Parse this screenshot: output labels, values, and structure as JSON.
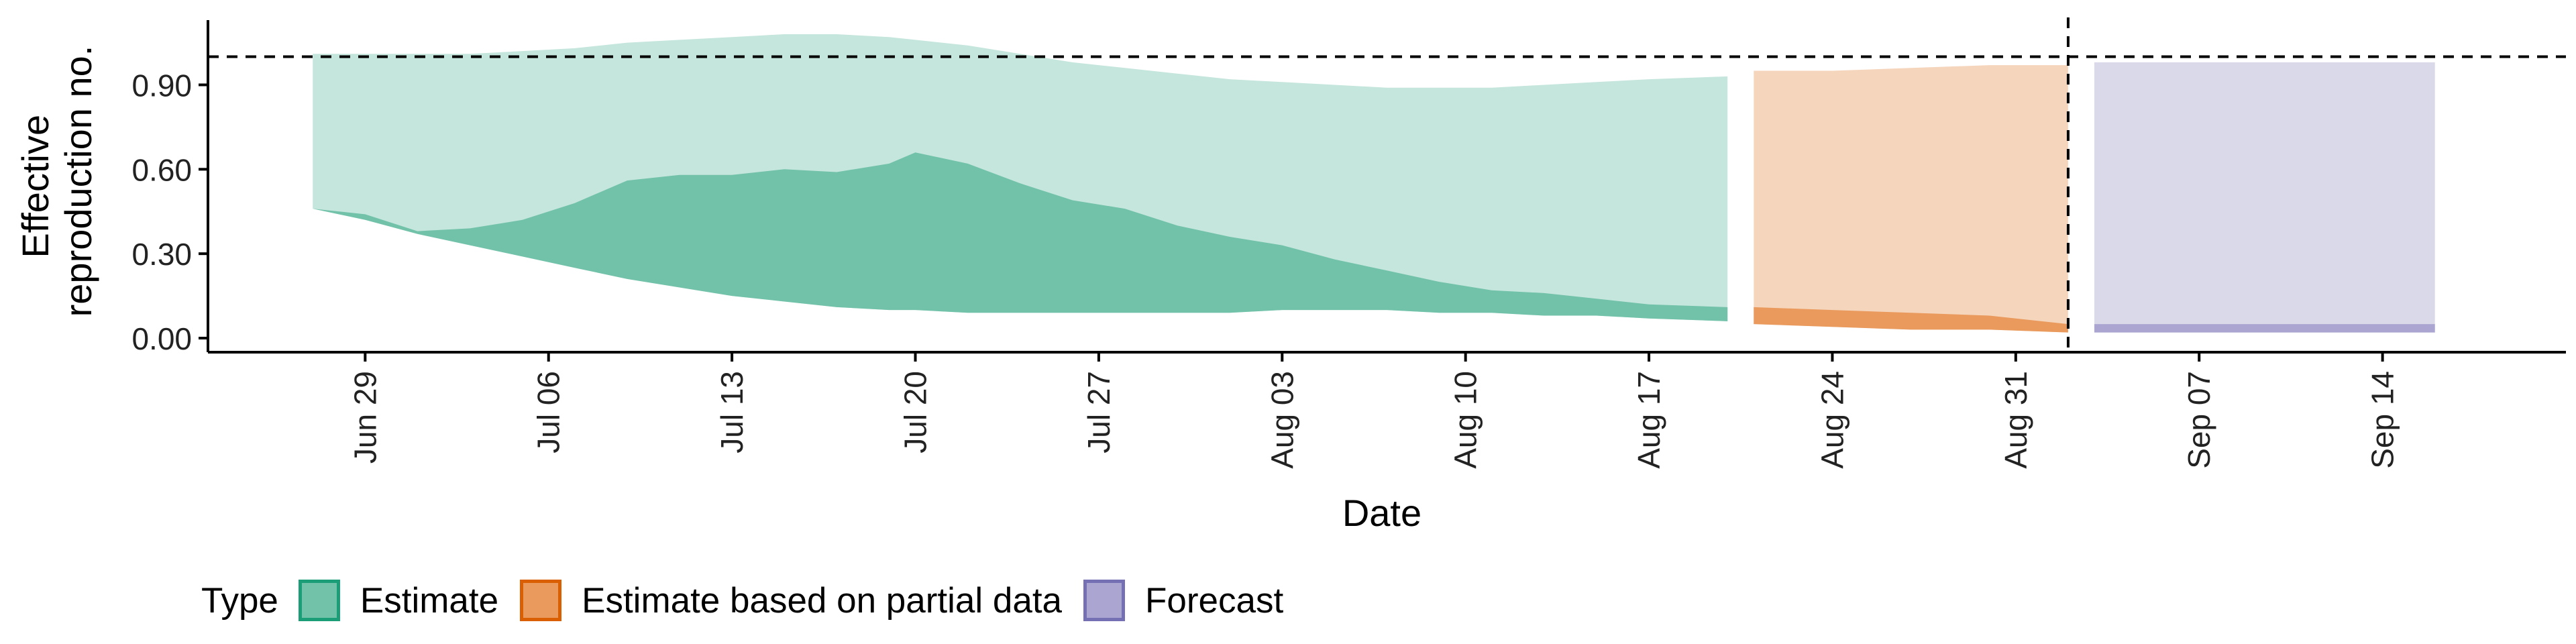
{
  "chart_data": {
    "type": "area",
    "xlabel": "Date",
    "ylabel_lines": [
      "Effective",
      "reproduction no."
    ],
    "x_range": [
      "2020-06-23",
      "2020-09-21"
    ],
    "y_range": [
      -0.05,
      1.13
    ],
    "x_ticks": [
      {
        "date": "2020-06-29",
        "label": "Jun 29"
      },
      {
        "date": "2020-07-06",
        "label": "Jul 06"
      },
      {
        "date": "2020-07-13",
        "label": "Jul 13"
      },
      {
        "date": "2020-07-20",
        "label": "Jul 20"
      },
      {
        "date": "2020-07-27",
        "label": "Jul 27"
      },
      {
        "date": "2020-08-03",
        "label": "Aug 03"
      },
      {
        "date": "2020-08-10",
        "label": "Aug 10"
      },
      {
        "date": "2020-08-17",
        "label": "Aug 17"
      },
      {
        "date": "2020-08-24",
        "label": "Aug 24"
      },
      {
        "date": "2020-08-31",
        "label": "Aug 31"
      },
      {
        "date": "2020-09-07",
        "label": "Sep 07"
      },
      {
        "date": "2020-09-14",
        "label": "Sep 14"
      }
    ],
    "y_ticks": [
      {
        "value": 0.0,
        "label": "0.00"
      },
      {
        "value": 0.3,
        "label": "0.30"
      },
      {
        "value": 0.6,
        "label": "0.60"
      },
      {
        "value": 0.9,
        "label": "0.90"
      }
    ],
    "hline": 1.0,
    "vline": "2020-09-02",
    "grid": false,
    "legend_position": "bottom",
    "legend": {
      "title": "Type",
      "items": [
        {
          "label": "Estimate",
          "fill": "#72c2aa",
          "border": "#1b9e77"
        },
        {
          "label": "Estimate based on partial data",
          "fill": "#e99a5c",
          "border": "#d95f02"
        },
        {
          "label": "Forecast",
          "fill": "#aba6d1",
          "border": "#7570b3"
        }
      ]
    },
    "series": [
      {
        "name": "Estimate",
        "outer_color": "#c5e6dc",
        "inner_color": "#72c2aa",
        "points": [
          {
            "x": "2020-06-27",
            "lo90": 0.46,
            "lo50": 0.46,
            "hi50": 0.46,
            "hi90": 1.01
          },
          {
            "x": "2020-06-29",
            "lo90": 0.42,
            "lo50": 0.42,
            "hi50": 0.44,
            "hi90": 1.01
          },
          {
            "x": "2020-07-01",
            "lo90": 0.37,
            "lo50": 0.37,
            "hi50": 0.38,
            "hi90": 1.01
          },
          {
            "x": "2020-07-03",
            "lo90": 0.33,
            "lo50": 0.33,
            "hi50": 0.39,
            "hi90": 1.01
          },
          {
            "x": "2020-07-05",
            "lo90": 0.29,
            "lo50": 0.29,
            "hi50": 0.42,
            "hi90": 1.02
          },
          {
            "x": "2020-07-07",
            "lo90": 0.25,
            "lo50": 0.25,
            "hi50": 0.48,
            "hi90": 1.03
          },
          {
            "x": "2020-07-09",
            "lo90": 0.21,
            "lo50": 0.21,
            "hi50": 0.56,
            "hi90": 1.05
          },
          {
            "x": "2020-07-11",
            "lo90": 0.18,
            "lo50": 0.18,
            "hi50": 0.58,
            "hi90": 1.06
          },
          {
            "x": "2020-07-13",
            "lo90": 0.15,
            "lo50": 0.15,
            "hi50": 0.58,
            "hi90": 1.07
          },
          {
            "x": "2020-07-15",
            "lo90": 0.13,
            "lo50": 0.13,
            "hi50": 0.6,
            "hi90": 1.08
          },
          {
            "x": "2020-07-17",
            "lo90": 0.11,
            "lo50": 0.11,
            "hi50": 0.59,
            "hi90": 1.08
          },
          {
            "x": "2020-07-19",
            "lo90": 0.1,
            "lo50": 0.1,
            "hi50": 0.62,
            "hi90": 1.07
          },
          {
            "x": "2020-07-20",
            "lo90": 0.1,
            "lo50": 0.1,
            "hi50": 0.66,
            "hi90": 1.06
          },
          {
            "x": "2020-07-22",
            "lo90": 0.09,
            "lo50": 0.09,
            "hi50": 0.62,
            "hi90": 1.04
          },
          {
            "x": "2020-07-24",
            "lo90": 0.09,
            "lo50": 0.09,
            "hi50": 0.55,
            "hi90": 1.01
          },
          {
            "x": "2020-07-26",
            "lo90": 0.09,
            "lo50": 0.09,
            "hi50": 0.49,
            "hi90": 0.98
          },
          {
            "x": "2020-07-28",
            "lo90": 0.09,
            "lo50": 0.09,
            "hi50": 0.46,
            "hi90": 0.96
          },
          {
            "x": "2020-07-30",
            "lo90": 0.09,
            "lo50": 0.09,
            "hi50": 0.4,
            "hi90": 0.94
          },
          {
            "x": "2020-08-01",
            "lo90": 0.09,
            "lo50": 0.09,
            "hi50": 0.36,
            "hi90": 0.92
          },
          {
            "x": "2020-08-03",
            "lo90": 0.1,
            "lo50": 0.1,
            "hi50": 0.33,
            "hi90": 0.91
          },
          {
            "x": "2020-08-05",
            "lo90": 0.1,
            "lo50": 0.1,
            "hi50": 0.28,
            "hi90": 0.9
          },
          {
            "x": "2020-08-07",
            "lo90": 0.1,
            "lo50": 0.1,
            "hi50": 0.24,
            "hi90": 0.89
          },
          {
            "x": "2020-08-09",
            "lo90": 0.09,
            "lo50": 0.09,
            "hi50": 0.2,
            "hi90": 0.89
          },
          {
            "x": "2020-08-11",
            "lo90": 0.09,
            "lo50": 0.09,
            "hi50": 0.17,
            "hi90": 0.89
          },
          {
            "x": "2020-08-13",
            "lo90": 0.08,
            "lo50": 0.08,
            "hi50": 0.16,
            "hi90": 0.9
          },
          {
            "x": "2020-08-15",
            "lo90": 0.08,
            "lo50": 0.08,
            "hi50": 0.14,
            "hi90": 0.91
          },
          {
            "x": "2020-08-17",
            "lo90": 0.07,
            "lo50": 0.07,
            "hi50": 0.12,
            "hi90": 0.92
          },
          {
            "x": "2020-08-20",
            "lo90": 0.06,
            "lo50": 0.06,
            "hi50": 0.11,
            "hi90": 0.93
          }
        ]
      },
      {
        "name": "Estimate based on partial data",
        "outer_color": "#f5d5bc",
        "inner_color": "#e99a5c",
        "points": [
          {
            "x": "2020-08-21",
            "lo90": 0.05,
            "lo50": 0.05,
            "hi50": 0.11,
            "hi90": 0.95
          },
          {
            "x": "2020-08-24",
            "lo90": 0.04,
            "lo50": 0.04,
            "hi50": 0.1,
            "hi90": 0.95
          },
          {
            "x": "2020-08-27",
            "lo90": 0.03,
            "lo50": 0.03,
            "hi50": 0.09,
            "hi90": 0.96
          },
          {
            "x": "2020-08-30",
            "lo90": 0.03,
            "lo50": 0.03,
            "hi50": 0.08,
            "hi90": 0.97
          },
          {
            "x": "2020-09-02",
            "lo90": 0.02,
            "lo50": 0.02,
            "hi50": 0.05,
            "hi90": 0.97
          }
        ]
      },
      {
        "name": "Forecast",
        "outer_color": "#dad9ea",
        "inner_color": "#aba6d1",
        "points": [
          {
            "x": "2020-09-03",
            "lo90": 0.02,
            "lo50": 0.02,
            "hi50": 0.05,
            "hi90": 0.98
          },
          {
            "x": "2020-09-16",
            "lo90": 0.02,
            "lo50": 0.02,
            "hi50": 0.05,
            "hi90": 0.98
          }
        ]
      }
    ]
  }
}
